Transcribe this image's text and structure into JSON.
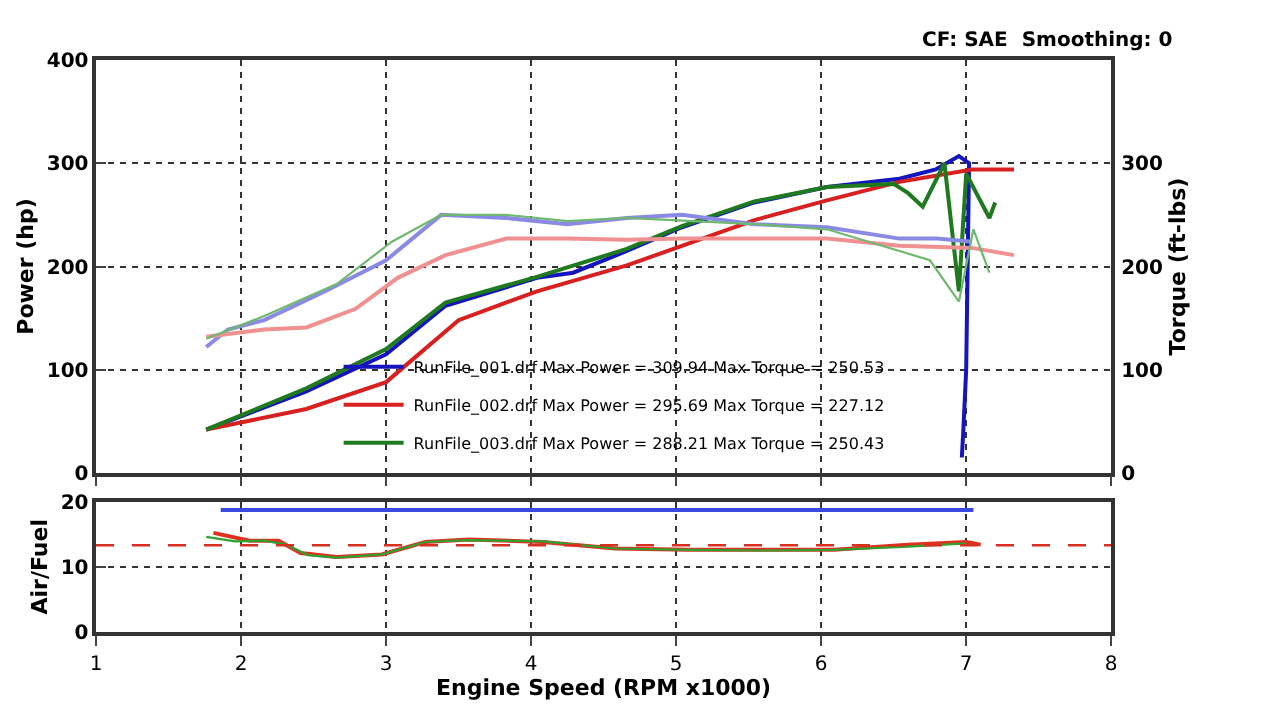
{
  "chart_data": [
    {
      "type": "line",
      "ylabel": "Power (hp)",
      "y2label": "Torque (ft-lbs)",
      "xlim": [
        1,
        8
      ],
      "xticks": [
        1,
        2,
        3,
        4,
        5,
        6,
        7,
        8
      ],
      "ylim": [
        0,
        400
      ],
      "yticks": [
        0,
        100,
        200,
        300,
        400
      ],
      "y2lim": [
        0,
        400
      ],
      "y2ticks": [
        0,
        100,
        200,
        300
      ],
      "grid": true,
      "legend": "bottom",
      "tick_labels": "y",
      "annotations": [
        "CF: SAE  Smoothing: 0"
      ],
      "series": [
        {
          "name": "RunFile_001.drf Max Power = 309.94 Max Torque = 250.53",
          "color": "#1515c0",
          "x": [
            1.76,
            2.45,
            3.0,
            3.41,
            4.04,
            4.29,
            4.66,
            5.04,
            5.54,
            6.04,
            6.54,
            6.79,
            6.95,
            7.02,
            7.0,
            6.98,
            6.97
          ],
          "values": [
            42,
            79,
            115,
            162,
            189,
            194,
            215,
            238,
            262,
            277,
            285,
            294,
            307,
            300,
            100,
            40,
            15
          ]
        },
        {
          "name": "RunFile_002.drf Max Power = 295.69 Max Torque = 227.12",
          "color": "#d82020",
          "x": [
            1.76,
            2.45,
            3.0,
            3.5,
            4.04,
            4.66,
            5.04,
            5.54,
            6.04,
            6.54,
            7.04,
            7.33
          ],
          "values": [
            42,
            62,
            88,
            148,
            176,
            201,
            220,
            245,
            264,
            282,
            294,
            294
          ]
        },
        {
          "name": "RunFile_003.drf Max Power = 288.21 Max Torque = 250.43",
          "color": "#1f7a1f",
          "x": [
            1.76,
            2.45,
            3.0,
            3.41,
            4.04,
            4.66,
            5.04,
            5.54,
            6.04,
            6.5,
            6.6,
            6.7,
            6.85,
            6.95,
            7.0,
            7.16,
            7.2
          ],
          "values": [
            42,
            82,
            120,
            165,
            190,
            217,
            239,
            263,
            277,
            280,
            271,
            258,
            300,
            176,
            290,
            247,
            262
          ]
        },
        {
          "color": "#8a8ae6",
          "axis": "y2",
          "x": [
            1.76,
            1.91,
            2.16,
            2.58,
            3.0,
            3.38,
            3.83,
            4.25,
            4.66,
            5.04,
            5.54,
            6.04,
            6.54,
            6.8,
            7.04
          ],
          "values": [
            122,
            139,
            148,
            176,
            206,
            250,
            247,
            241,
            247,
            250,
            241,
            238,
            227,
            227,
            224
          ]
        },
        {
          "color": "#f09090",
          "axis": "y2",
          "x": [
            1.76,
            2.16,
            2.45,
            2.79,
            3.08,
            3.41,
            3.83,
            4.25,
            4.66,
            5.04,
            6.04,
            6.54,
            7.04,
            7.33
          ],
          "values": [
            132,
            139,
            141,
            159,
            189,
            211,
            227,
            227,
            226,
            227,
            227,
            220,
            218,
            211
          ]
        },
        {
          "color": "#70b870",
          "axis": "y2",
          "x": [
            1.76,
            2.16,
            2.66,
            3.04,
            3.38,
            3.83,
            4.25,
            4.66,
            5.54,
            6.04,
            6.54,
            6.75,
            6.95,
            7.05,
            7.16
          ],
          "values": [
            130,
            152,
            183,
            224,
            250,
            250,
            244,
            247,
            241,
            236,
            215,
            206,
            166,
            236,
            194
          ]
        }
      ]
    },
    {
      "type": "line",
      "ylabel": "Air/Fuel",
      "xlabel": "Engine Speed (RPM x1000)",
      "xlim": [
        1,
        8
      ],
      "xticks": [
        1,
        2,
        3,
        4,
        5,
        6,
        7,
        8
      ],
      "ylim": [
        0,
        20
      ],
      "yticks": [
        0,
        10,
        20
      ],
      "grid": true,
      "ref_lines": [
        {
          "axis": "y",
          "value": 13.3,
          "color": "#d83020",
          "line_style": "dashed"
        }
      ],
      "series": [
        {
          "color": "#3a4ae0",
          "x": [
            1.86,
            7.05
          ],
          "values": [
            18.7,
            18.7
          ]
        },
        {
          "color": "#e03020",
          "x": [
            1.81,
            2.06,
            2.26,
            2.41,
            2.66,
            2.97,
            3.27,
            3.57,
            4.08,
            4.58,
            5.08,
            5.59,
            6.09,
            6.6,
            7.0,
            7.1
          ],
          "values": [
            15.2,
            14,
            14,
            12.1,
            11.5,
            11.9,
            13.8,
            14.2,
            13.8,
            12.8,
            12.6,
            12.6,
            12.6,
            13.4,
            13.8,
            13.4
          ]
        },
        {
          "color": "#30a030",
          "x": [
            1.76,
            1.96,
            2.16,
            2.31,
            2.46,
            2.66,
            2.97,
            3.27,
            3.57,
            4.08,
            4.58,
            5.08,
            5.59,
            6.09,
            6.6,
            7.0
          ],
          "values": [
            14.6,
            13.9,
            14,
            13.4,
            11.8,
            11.4,
            11.9,
            13.8,
            14.1,
            13.9,
            12.8,
            12.6,
            12.5,
            12.6,
            13.1,
            13.6
          ]
        }
      ]
    }
  ]
}
